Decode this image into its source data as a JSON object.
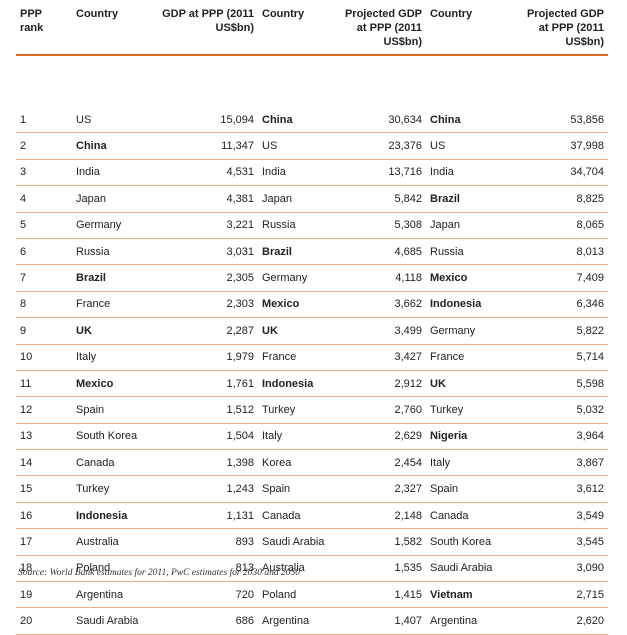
{
  "headers": {
    "rank": "PPP rank",
    "country1": "Country",
    "gdp1": "GDP at PPP (2011 US$bn)",
    "country2": "Country",
    "gdp2": "Projected GDP at PPP (2011 US$bn)",
    "country3": "Country",
    "gdp3": "Projected GDP at PPP (2011 US$bn)"
  },
  "rows": [
    {
      "rank": "1",
      "c1": "US",
      "v1": "15,094",
      "c2": "China",
      "v2": "30,634",
      "c3": "China",
      "v3": "53,856"
    },
    {
      "rank": "2",
      "c1": "China",
      "v1": "11,347",
      "c2": "US",
      "v2": "23,376",
      "c3": "US",
      "v3": "37,998"
    },
    {
      "rank": "3",
      "c1": "India",
      "v1": "4,531",
      "c2": "India",
      "v2": "13,716",
      "c3": "India",
      "v3": "34,704"
    },
    {
      "rank": "4",
      "c1": "Japan",
      "v1": "4,381",
      "c2": "Japan",
      "v2": "5,842",
      "c3": "Brazil",
      "v3": "8,825"
    },
    {
      "rank": "5",
      "c1": "Germany",
      "v1": "3,221",
      "c2": "Russia",
      "v2": "5,308",
      "c3": "Japan",
      "v3": "8,065"
    },
    {
      "rank": "6",
      "c1": "Russia",
      "v1": "3,031",
      "c2": "Brazil",
      "v2": "4,685",
      "c3": "Russia",
      "v3": "8,013"
    },
    {
      "rank": "7",
      "c1": "Brazil",
      "v1": "2,305",
      "c2": "Germany",
      "v2": "4,118",
      "c3": "Mexico",
      "v3": "7,409"
    },
    {
      "rank": "8",
      "c1": "France",
      "v1": "2,303",
      "c2": "Mexico",
      "v2": "3,662",
      "c3": "Indonesia",
      "v3": "6,346"
    },
    {
      "rank": "9",
      "c1": "UK",
      "v1": "2,287",
      "c2": "UK",
      "v2": "3,499",
      "c3": "Germany",
      "v3": "5,822"
    },
    {
      "rank": "10",
      "c1": "Italy",
      "v1": "1,979",
      "c2": "France",
      "v2": "3,427",
      "c3": "France",
      "v3": "5,714"
    },
    {
      "rank": "11",
      "c1": "Mexico",
      "v1": "1,761",
      "c2": "Indonesia",
      "v2": "2,912",
      "c3": "UK",
      "v3": "5,598"
    },
    {
      "rank": "12",
      "c1": "Spain",
      "v1": "1,512",
      "c2": "Turkey",
      "v2": "2,760",
      "c3": "Turkey",
      "v3": "5,032"
    },
    {
      "rank": "13",
      "c1": "South Korea",
      "v1": "1,504",
      "c2": "Italy",
      "v2": "2,629",
      "c3": "Nigeria",
      "v3": "3,964"
    },
    {
      "rank": "14",
      "c1": "Canada",
      "v1": "1,398",
      "c2": "Korea",
      "v2": "2,454",
      "c3": "Italy",
      "v3": "3,867"
    },
    {
      "rank": "15",
      "c1": "Turkey",
      "v1": "1,243",
      "c2": "Spain",
      "v2": "2,327",
      "c3": "Spain",
      "v3": "3,612"
    },
    {
      "rank": "16",
      "c1": "Indonesia",
      "v1": "1,131",
      "c2": "Canada",
      "v2": "2,148",
      "c3": "Canada",
      "v3": "3,549"
    },
    {
      "rank": "17",
      "c1": "Australia",
      "v1": "893",
      "c2": "Saudi Arabia",
      "v2": "1,582",
      "c3": "South Korea",
      "v3": "3,545"
    },
    {
      "rank": "18",
      "c1": "Poland",
      "v1": "813",
      "c2": "Australia",
      "v2": "1,535",
      "c3": "Saudi Arabia",
      "v3": "3,090"
    },
    {
      "rank": "19",
      "c1": "Argentina",
      "v1": "720",
      "c2": "Poland",
      "v2": "1,415",
      "c3": "Vietnam",
      "v3": "2,715"
    },
    {
      "rank": "20",
      "c1": "Saudi Arabia",
      "v1": "686",
      "c2": "Argentina",
      "v2": "1,407",
      "c3": "Argentina",
      "v3": "2,620"
    }
  ],
  "bold_countries": [
    "China",
    "Brazil",
    "UK",
    "Mexico",
    "Indonesia",
    "Nigeria",
    "Vietnam"
  ],
  "colors": {
    "rule": "#e36c2b",
    "row_divider": "#f0b089",
    "text": "#222222"
  },
  "source": "Source: World Bank estimates for 2011, PwC estimates for 2030 and 2050"
}
